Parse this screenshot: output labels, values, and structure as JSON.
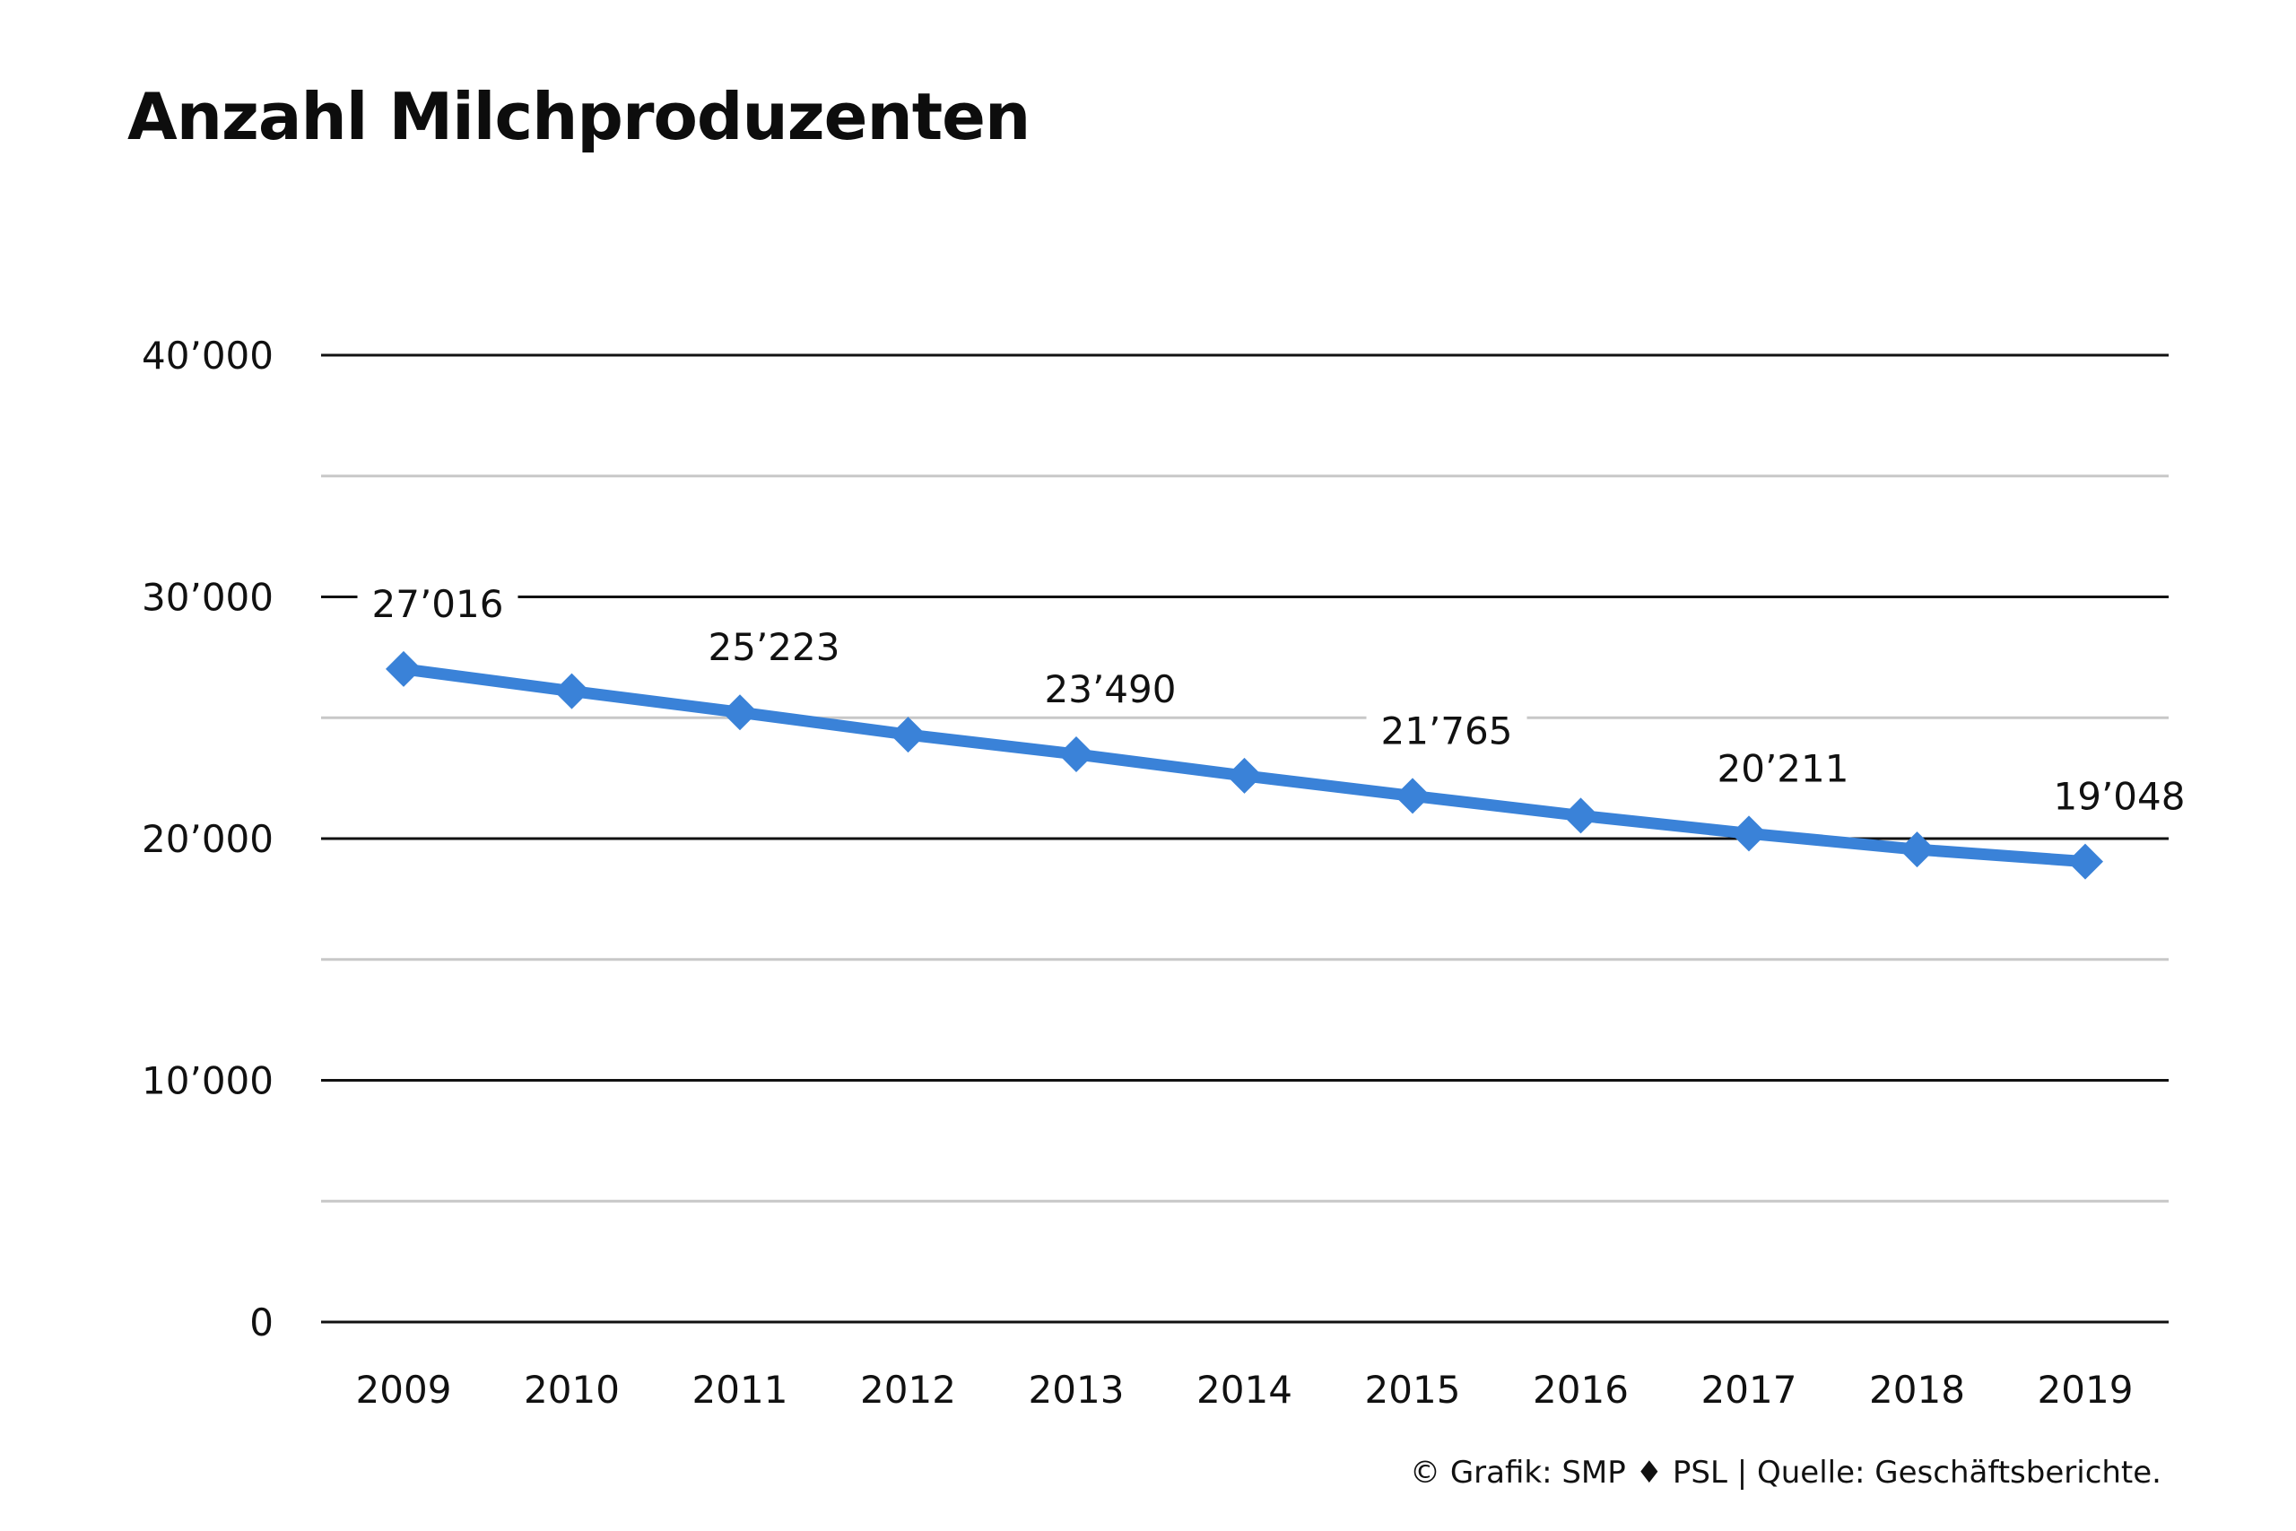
{
  "chart_data": {
    "type": "line",
    "title": "Anzahl Milchproduzenten",
    "xlabel": "",
    "ylabel": "",
    "categories": [
      "2009",
      "2010",
      "2011",
      "2012",
      "2013",
      "2014",
      "2015",
      "2016",
      "2017",
      "2018",
      "2019"
    ],
    "series": [
      {
        "values": [
          27016,
          26100,
          25223,
          24300,
          23490,
          22600,
          21765,
          20950,
          20211,
          19550,
          19048
        ],
        "color": "#3a82d8",
        "marker": "diamond"
      }
    ],
    "data_labels": [
      {
        "index": 0,
        "text": "27’016"
      },
      {
        "index": 2,
        "text": "25’223"
      },
      {
        "index": 4,
        "text": "23’490"
      },
      {
        "index": 6,
        "text": "21’765"
      },
      {
        "index": 8,
        "text": "20’211"
      },
      {
        "index": 10,
        "text": "19’048"
      }
    ],
    "ylim": [
      0,
      40000
    ],
    "yticks": [
      0,
      10000,
      20000,
      30000,
      40000
    ],
    "ytick_labels": [
      "0",
      "10’000",
      "20’000",
      "30’000",
      "40’000"
    ],
    "minor_gridlines": [
      5000,
      15000,
      25000,
      35000
    ],
    "grid": true,
    "legend": "none"
  },
  "footer": {
    "prefix": "© Grafik: SMP",
    "separator_icon": "diamond-icon",
    "suffix": "PSL | Quelle: Geschäftsberichte."
  },
  "colors": {
    "line": "#3a82d8",
    "major_grid": "#111111",
    "minor_grid": "#c8c8c8",
    "text": "#111111"
  }
}
